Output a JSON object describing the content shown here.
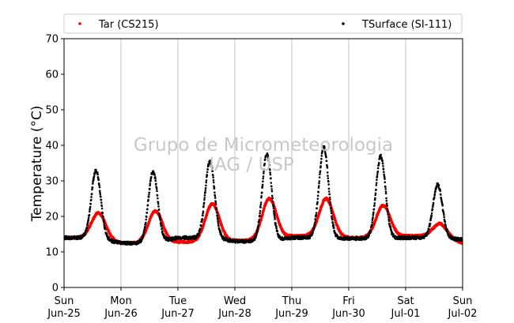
{
  "chart_data": {
    "type": "scatter",
    "title": "",
    "xlabel": "",
    "ylabel": "Temperature (°C)",
    "ylim": [
      0,
      70
    ],
    "yticks": [
      0,
      10,
      20,
      30,
      40,
      50,
      60,
      70
    ],
    "xlim_days": [
      0,
      7
    ],
    "x_ticks": [
      {
        "day": "Sun",
        "date": "Jun-25"
      },
      {
        "day": "Mon",
        "date": "Jun-26"
      },
      {
        "day": "Tue",
        "date": "Jun-27"
      },
      {
        "day": "Wed",
        "date": "Jun-28"
      },
      {
        "day": "Thu",
        "date": "Jun-29"
      },
      {
        "day": "Fri",
        "date": "Jun-30"
      },
      {
        "day": "Sat",
        "date": "Jul-01"
      },
      {
        "day": "Sun",
        "date": "Jul-02"
      }
    ],
    "grid": "vertical",
    "legend_position": "top",
    "watermark": [
      "Grupo de Micrometeorologia",
      "IAG / USP"
    ],
    "series": [
      {
        "name": "Tar (CS215)",
        "color": "#ff0000",
        "marker": "dot",
        "daily": [
          {
            "min": 14.0,
            "max": 21.0
          },
          {
            "min": 12.5,
            "max": 21.5
          },
          {
            "min": 12.8,
            "max": 23.5
          },
          {
            "min": 13.2,
            "max": 25.0
          },
          {
            "min": 14.5,
            "max": 25.0
          },
          {
            "min": 14.0,
            "max": 23.0
          },
          {
            "min": 14.5,
            "max": 18.0
          },
          {
            "min": 12.5,
            "max": 14.5
          }
        ]
      },
      {
        "name": "TSurface (SI-111)",
        "color": "#000000",
        "marker": "dot",
        "daily": [
          {
            "min": 14.0,
            "max": 33.0
          },
          {
            "min": 12.5,
            "max": 32.5
          },
          {
            "min": 14.0,
            "max": 35.5
          },
          {
            "min": 13.0,
            "max": 37.5
          },
          {
            "min": 14.0,
            "max": 39.5
          },
          {
            "min": 13.8,
            "max": 37.0
          },
          {
            "min": 14.0,
            "max": 29.0
          },
          {
            "min": 13.5,
            "max": 14.0
          }
        ]
      }
    ]
  }
}
